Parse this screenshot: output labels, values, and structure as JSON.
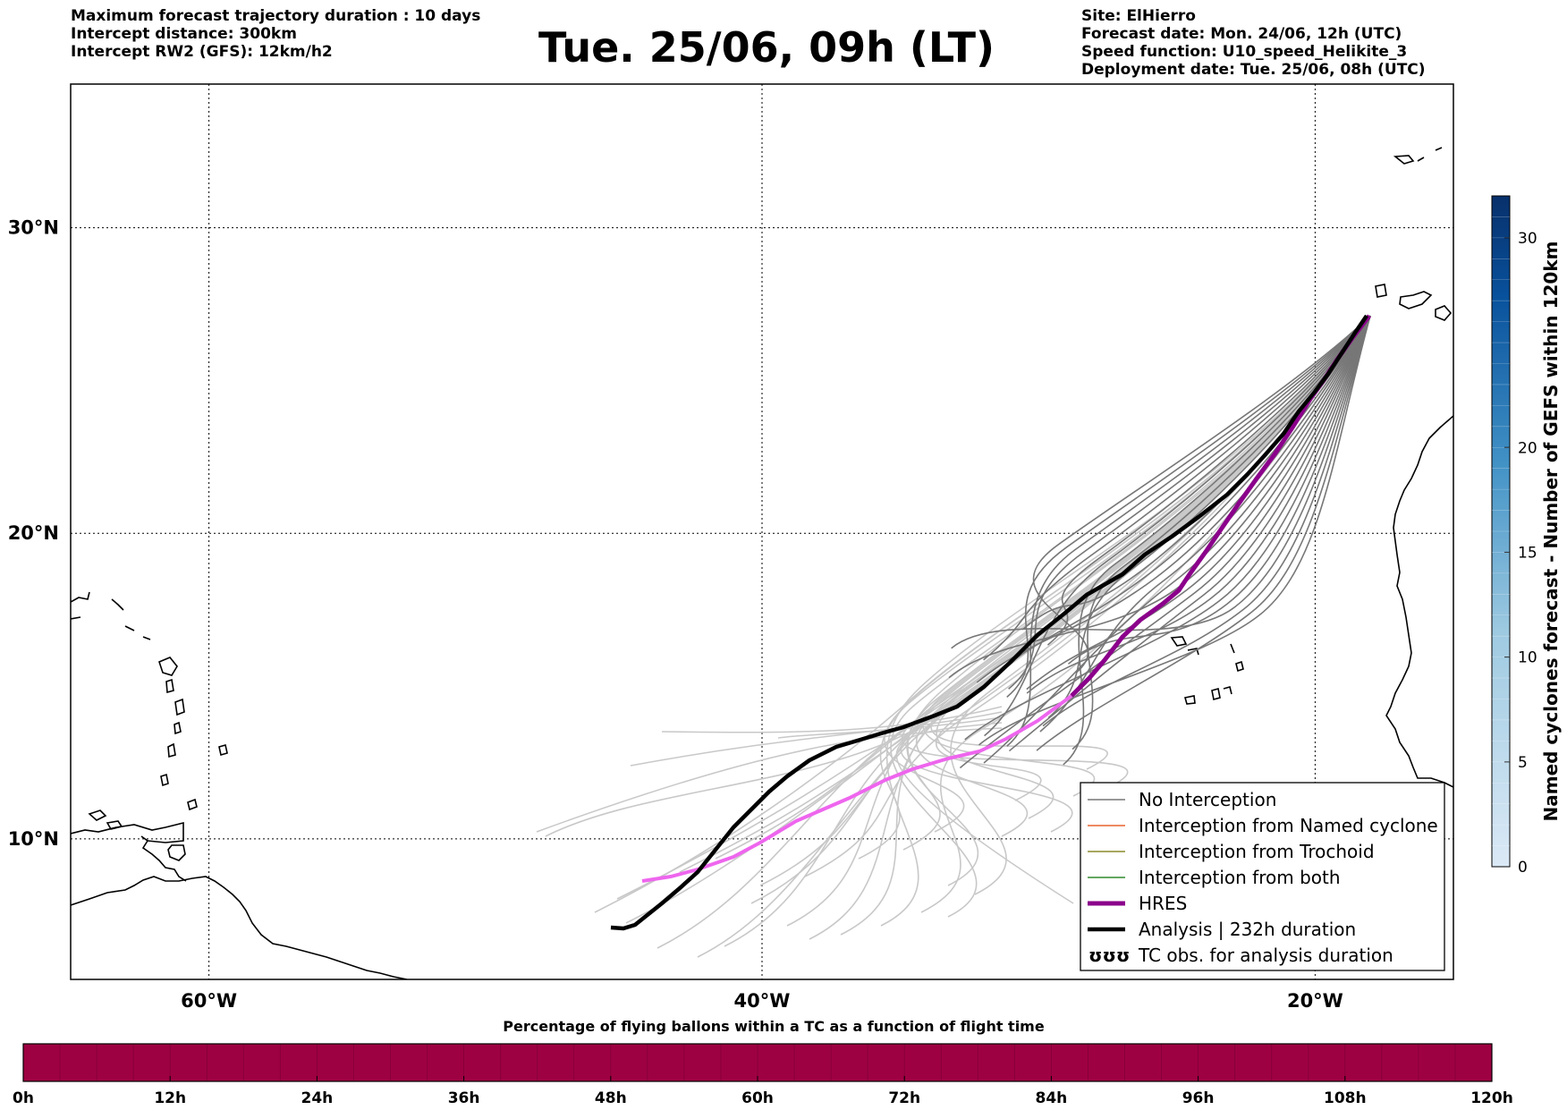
{
  "header": {
    "left_lines": [
      "Maximum forecast trajectory duration : 10 days",
      "Intercept distance: 300km",
      "Intercept RW2 (GFS):  12km/h2"
    ],
    "title": "Tue. 25/06, 09h (LT)",
    "right_lines": [
      "Site: ElHierro",
      "Forecast date: Mon. 24/06, 12h (UTC)",
      "Speed function: U10_speed_Helikite_3",
      "Deployment date: Tue. 25/06, 08h (UTC)"
    ]
  },
  "map": {
    "lon_ticks": [
      {
        "lon": -60,
        "label": "60°W"
      },
      {
        "lon": -40,
        "label": "40°W"
      },
      {
        "lon": -20,
        "label": "20°W"
      }
    ],
    "lat_ticks": [
      {
        "lat": 10,
        "label": "10°N"
      },
      {
        "lat": 20,
        "label": "20°N"
      },
      {
        "lat": 30,
        "label": "30°N"
      }
    ],
    "colors": {
      "no_interception": "#777777",
      "far_ensemble": "#c8c8c8",
      "named_cyclone": "#e8622d",
      "trochoid": "#8a8a2a",
      "both": "#2e8b2e",
      "hres_dark": "#8b008b",
      "hres_light": "#ee66ee",
      "analysis": "#000000",
      "coast": "#000000"
    },
    "legend": [
      {
        "label": "No Interception",
        "style": "no_interception"
      },
      {
        "label": "Interception from Named cyclone",
        "style": "named_cyclone"
      },
      {
        "label": "Interception from Trochoid",
        "style": "trochoid"
      },
      {
        "label": "Interception from both",
        "style": "both"
      },
      {
        "label": "HRES",
        "style": "hres"
      },
      {
        "label": "Analysis | 232h duration",
        "style": "analysis"
      },
      {
        "label": "TC obs. for analysis duration",
        "style": "tc_obs",
        "glyph": "ʊʊʊ"
      }
    ]
  },
  "colorbar_right": {
    "label": "Named cyclones forecast - Number of GEFS within 120km",
    "ticks": [
      0,
      5,
      10,
      15,
      20,
      30
    ],
    "min": 0,
    "max": 32,
    "color_low": "#dbe9f6",
    "color_high": "#08306b"
  },
  "colorbar_bottom": {
    "caption": "Percentage of flying ballons within a TC as a function of flight time",
    "ticks": [
      "0h",
      "12h",
      "24h",
      "36h",
      "48h",
      "60h",
      "72h",
      "84h",
      "96h",
      "108h",
      "120h"
    ],
    "fill_color": "#9e0142"
  }
}
